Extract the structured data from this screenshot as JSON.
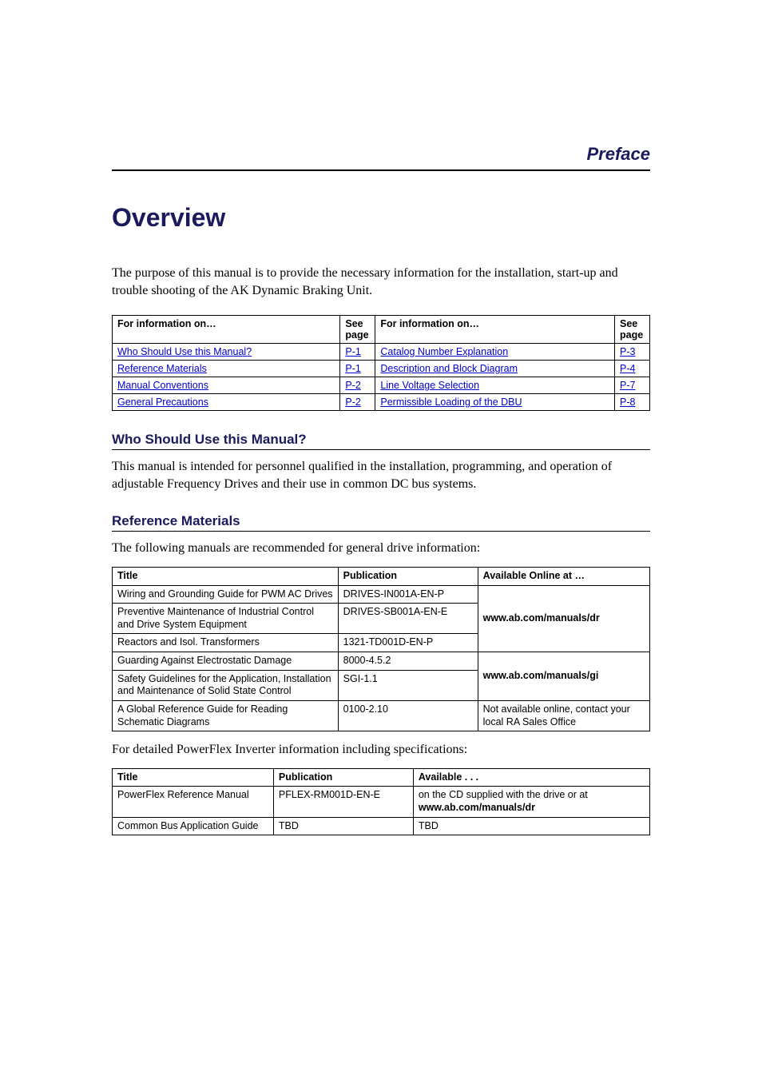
{
  "prefaceLabel": "Preface",
  "title": "Overview",
  "intro": "The purpose of this manual is to provide the necessary information for the installation, start-up and trouble shooting of the AK Dynamic Braking Unit.",
  "navTable": {
    "headers": [
      "For information on…",
      "See page",
      "For information on…",
      "See page"
    ],
    "rows": [
      [
        "Who Should Use this Manual?",
        "P-1",
        "Catalog Number Explanation",
        "P-3"
      ],
      [
        "Reference Materials",
        "P-1",
        "Description and Block Diagram",
        "P-4"
      ],
      [
        "Manual Conventions",
        "P-2",
        "Line Voltage Selection",
        "P-7"
      ],
      [
        "General Precautions",
        "P-2",
        "Permissible Loading of the DBU",
        "P-8"
      ]
    ]
  },
  "section1": {
    "heading": "Who Should Use this Manual?",
    "body": "This manual is intended for personnel qualified in the installation, programming, and operation of adjustable Frequency Drives and their use in common DC bus systems."
  },
  "section2": {
    "heading": "Reference Materials",
    "lead": "The following manuals are recommended for general drive information:"
  },
  "refTable": {
    "headers": [
      "Title",
      "Publication",
      "Available Online at …"
    ],
    "rows": [
      {
        "title": "Wiring and Grounding Guide for PWM AC Drives",
        "pub": "DRIVES-IN001A-EN-P",
        "avail": "www.ab.com/manuals/dr",
        "availBold": true,
        "span": 3
      },
      {
        "title": "Preventive Maintenance of Industrial Control and Drive System Equipment",
        "pub": "DRIVES-SB001A-EN-E"
      },
      {
        "title": "Reactors and Isol. Transformers",
        "pub": "1321-TD001D-EN-P"
      },
      {
        "title": "Guarding Against Electrostatic Damage",
        "pub": "8000-4.5.2",
        "avail": "www.ab.com/manuals/gi",
        "availBold": true,
        "span": 2
      },
      {
        "title": "Safety Guidelines for the Application, Installation and Maintenance of Solid State Control",
        "pub": "SGI-1.1"
      },
      {
        "title": "A Global Reference Guide for Reading Schematic Diagrams",
        "pub": "0100-2.10",
        "avail": "Not available online, contact your local RA Sales Office",
        "availBold": false,
        "span": 1
      }
    ]
  },
  "detailLead": "For detailed PowerFlex Inverter information including specifications:",
  "detTable": {
    "headers": [
      "Title",
      "Publication",
      "Available . . ."
    ],
    "rows": [
      {
        "title": "PowerFlex Reference Manual",
        "pub": "PFLEX-RM001D-EN-E",
        "availPrefix": "on the CD supplied with the drive or at ",
        "availBold": "www.ab.com/manuals/dr"
      },
      {
        "title": "Common Bus Application Guide",
        "pub": "TBD",
        "availPrefix": "TBD",
        "availBold": ""
      }
    ]
  }
}
